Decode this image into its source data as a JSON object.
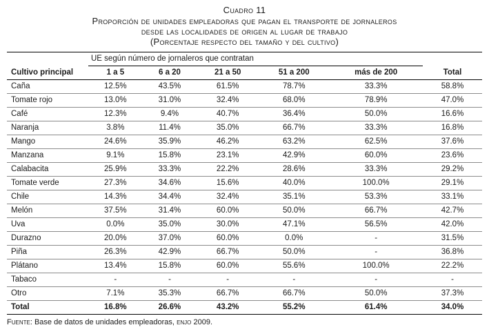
{
  "title": {
    "caption": "Cuadro 11",
    "line1": "Proporción de unidades empleadoras que pagan el transporte de jornaleros",
    "line2": "desde las localidades de origen al lugar de trabajo",
    "line3": "(Porcentaje respecto del tamaño y del cultivo)"
  },
  "table": {
    "group_header": "UE según número de jornaleros que contratan",
    "col_headers": [
      "Cultivo principal",
      "1 a 5",
      "6 a 20",
      "21 a 50",
      "51 a 200",
      "más de 200",
      "Total"
    ],
    "rows": [
      {
        "label": "Caña",
        "values": [
          "12.5%",
          "43.5%",
          "61.5%",
          "78.7%",
          "33.3%",
          "58.8%"
        ]
      },
      {
        "label": "Tomate rojo",
        "values": [
          "13.0%",
          "31.0%",
          "32.4%",
          "68.0%",
          "78.9%",
          "47.0%"
        ]
      },
      {
        "label": "Café",
        "values": [
          "12.3%",
          "9.4%",
          "40.7%",
          "36.4%",
          "50.0%",
          "16.6%"
        ]
      },
      {
        "label": "Naranja",
        "values": [
          "3.8%",
          "11.4%",
          "35.0%",
          "66.7%",
          "33.3%",
          "16.8%"
        ]
      },
      {
        "label": "Mango",
        "values": [
          "24.6%",
          "35.9%",
          "46.2%",
          "63.2%",
          "62.5%",
          "37.6%"
        ]
      },
      {
        "label": "Manzana",
        "values": [
          "9.1%",
          "15.8%",
          "23.1%",
          "42.9%",
          "60.0%",
          "23.6%"
        ]
      },
      {
        "label": "Calabacita",
        "values": [
          "25.9%",
          "33.3%",
          "22.2%",
          "28.6%",
          "33.3%",
          "29.2%"
        ]
      },
      {
        "label": "Tomate verde",
        "values": [
          "27.3%",
          "34.6%",
          "15.6%",
          "40.0%",
          "100.0%",
          "29.1%"
        ]
      },
      {
        "label": "Chile",
        "values": [
          "14.3%",
          "34.4%",
          "32.4%",
          "35.1%",
          "53.3%",
          "33.1%"
        ]
      },
      {
        "label": "Melón",
        "values": [
          "37.5%",
          "31.4%",
          "60.0%",
          "50.0%",
          "66.7%",
          "42.7%"
        ]
      },
      {
        "label": "Uva",
        "values": [
          "0.0%",
          "35.0%",
          "30.0%",
          "47.1%",
          "56.5%",
          "42.0%"
        ]
      },
      {
        "label": "Durazno",
        "values": [
          "20.0%",
          "37.0%",
          "60.0%",
          "0.0%",
          "-",
          "31.5%"
        ]
      },
      {
        "label": "Piña",
        "values": [
          "26.3%",
          "42.9%",
          "66.7%",
          "50.0%",
          "-",
          "36.8%"
        ]
      },
      {
        "label": "Plátano",
        "values": [
          "13.4%",
          "15.8%",
          "60.0%",
          "55.6%",
          "100.0%",
          "22.2%"
        ]
      },
      {
        "label": "Tabaco",
        "values": [
          "-",
          "-",
          "-",
          "-",
          "-",
          "-"
        ]
      },
      {
        "label": "Otro",
        "values": [
          "7.1%",
          "35.3%",
          "66.7%",
          "66.7%",
          "50.0%",
          "37.3%"
        ]
      },
      {
        "label": "Total",
        "values": [
          "16.8%",
          "26.6%",
          "43.2%",
          "55.2%",
          "61.4%",
          "34.0%"
        ],
        "bold": true
      }
    ]
  },
  "footer": {
    "prefix": "Fuente:",
    "text": "Base de datos de unidades empleadoras,",
    "acronym": "enjo",
    "suffix": "2009."
  }
}
